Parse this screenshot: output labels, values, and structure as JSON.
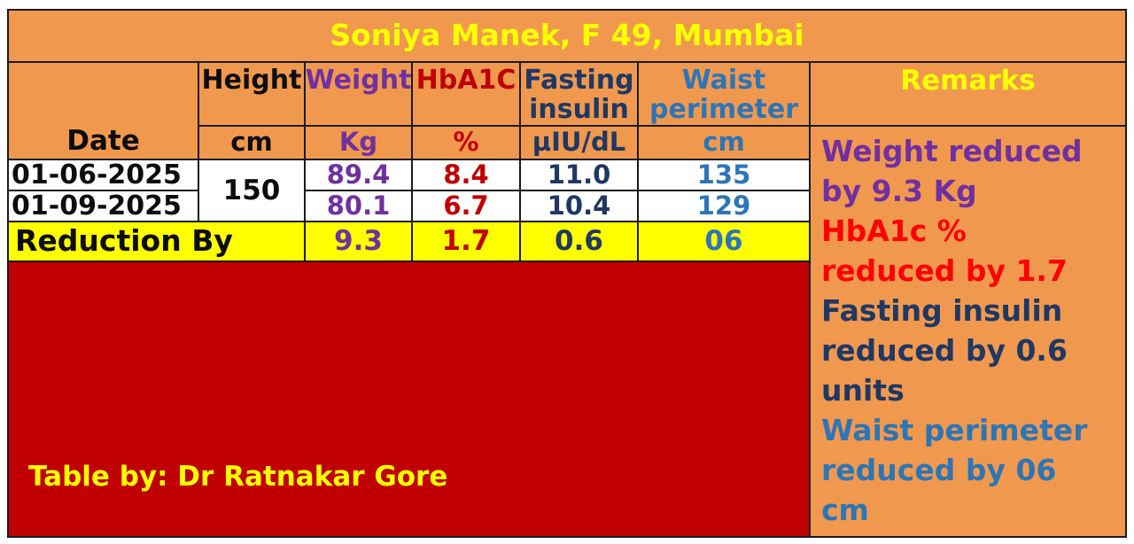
{
  "title": "Soniya Manek, F 49, Mumbai",
  "columns": {
    "date": {
      "label": "Date"
    },
    "height": {
      "label": "Height",
      "unit": "cm"
    },
    "weight": {
      "label": "Weight",
      "unit": "Kg"
    },
    "hba1c": {
      "label": "HbA1C",
      "unit": "%"
    },
    "fasting_insulin": {
      "label": "Fasting insulin",
      "unit": "µIU/dL"
    },
    "waist_perimeter": {
      "label": "Waist perimeter",
      "unit": "cm"
    },
    "remarks": {
      "label": "Remarks"
    }
  },
  "rows": [
    {
      "date": "01-06-2025",
      "height_cm": "150",
      "weight_kg": "89.4",
      "hba1c_pct": "8.4",
      "fasting_insulin": "11.0",
      "waist_cm": "135"
    },
    {
      "date": "01-09-2025",
      "weight_kg": "80.1",
      "hba1c_pct": "6.7",
      "fasting_insulin": "10.4",
      "waist_cm": "129"
    }
  ],
  "reduction": {
    "label": "Reduction By",
    "weight_kg": "9.3",
    "hba1c_pct": "1.7",
    "fasting_insulin": "0.6",
    "waist_cm": "06"
  },
  "remarks": [
    {
      "text": "Weight reduced by 9.3 Kg",
      "color": "#7030A0"
    },
    {
      "text": "HbA1c % reduced by 1.7",
      "color": "#FF0000"
    },
    {
      "text": "Fasting insulin reduced by 0.6 units",
      "color": "#1F3864"
    },
    {
      "text": "Waist perimeter reduced by 06 cm",
      "color": "#2E75B6"
    }
  ],
  "footer": {
    "credit": "Table by: Dr Ratnakar Gore"
  },
  "colors": {
    "table_background": "#F0994E",
    "footer_background": "#C00000",
    "highlight_row": "#FFFF00",
    "data_row_background": "#FFFFFF",
    "border": "#1A1A1A",
    "title_text": "#FFFF00",
    "date_text": "#0D0D0D",
    "weight_text": "#7030A0",
    "hba1c_text": "#C00000",
    "fasting_insulin_text": "#1F3864",
    "waist_text": "#2E75B6",
    "remarks_header_text": "#FFFF00",
    "credit_text": "#FFFF00"
  }
}
